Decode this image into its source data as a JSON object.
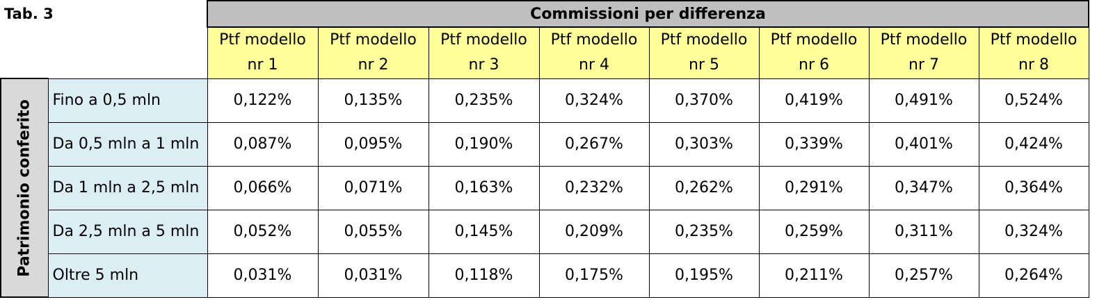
{
  "table": {
    "label": "Tab. 3",
    "group_header": "Commissioni per differenza",
    "row_group_label": "Patrimonio conferito",
    "columns": [
      {
        "line1": "Ptf modello",
        "line2": "nr 1"
      },
      {
        "line1": "Ptf modello",
        "line2": "nr 2"
      },
      {
        "line1": "Ptf modello",
        "line2": "nr 3"
      },
      {
        "line1": "Ptf modello",
        "line2": "nr 4"
      },
      {
        "line1": "Ptf modello",
        "line2": "nr 5"
      },
      {
        "line1": "Ptf modello",
        "line2": "nr 6"
      },
      {
        "line1": "Ptf modello",
        "line2": "nr 7"
      },
      {
        "line1": "Ptf modello",
        "line2": "nr 8"
      }
    ],
    "rows": [
      {
        "label": "Fino a 0,5 mln",
        "values": [
          "0,122%",
          "0,135%",
          "0,235%",
          "0,324%",
          "0,370%",
          "0,419%",
          "0,491%",
          "0,524%"
        ]
      },
      {
        "label": "Da 0,5 mln a 1 mln",
        "values": [
          "0,087%",
          "0,095%",
          "0,190%",
          "0,267%",
          "0,303%",
          "0,339%",
          "0,401%",
          "0,424%"
        ]
      },
      {
        "label": "Da 1 mln a 2,5 mln",
        "values": [
          "0,066%",
          "0,071%",
          "0,163%",
          "0,232%",
          "0,262%",
          "0,291%",
          "0,347%",
          "0,364%"
        ]
      },
      {
        "label": "Da 2,5 mln a 5 mln",
        "values": [
          "0,052%",
          "0,055%",
          "0,145%",
          "0,209%",
          "0,235%",
          "0,259%",
          "0,311%",
          "0,324%"
        ]
      },
      {
        "label": "Oltre 5 mln",
        "values": [
          "0,031%",
          "0,031%",
          "0,118%",
          "0,175%",
          "0,195%",
          "0,211%",
          "0,257%",
          "0,264%"
        ]
      }
    ]
  },
  "colors": {
    "group_header_bg": "#bfbfbf",
    "column_header_bg": "#ffff99",
    "row_header_bg": "#daeef3",
    "row_group_bg": "#d9d9d9"
  }
}
